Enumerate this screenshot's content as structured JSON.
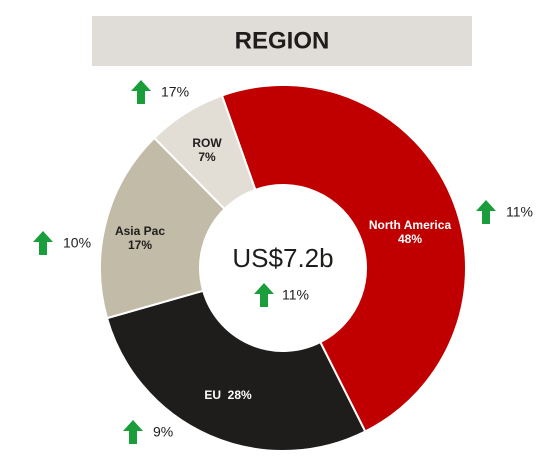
{
  "chart_data": {
    "type": "donut",
    "title": "REGION",
    "categories": [
      "North America",
      "EU",
      "Asia Pac",
      "ROW"
    ],
    "values": [
      48,
      28,
      17,
      7
    ],
    "value_labels": [
      "48%",
      "28%",
      "17%",
      "7%"
    ],
    "colors": [
      "#c00000",
      "#1f1d1b",
      "#c2bba8",
      "#e2ded5"
    ],
    "label_colors": [
      "#ffffff",
      "#ffffff",
      "#1f1d1b",
      "#1f1d1b"
    ],
    "growth_labels": [
      "11%",
      "9%",
      "10%",
      "17%"
    ],
    "center_text": "US$7.2b",
    "center_growth": "11%"
  }
}
